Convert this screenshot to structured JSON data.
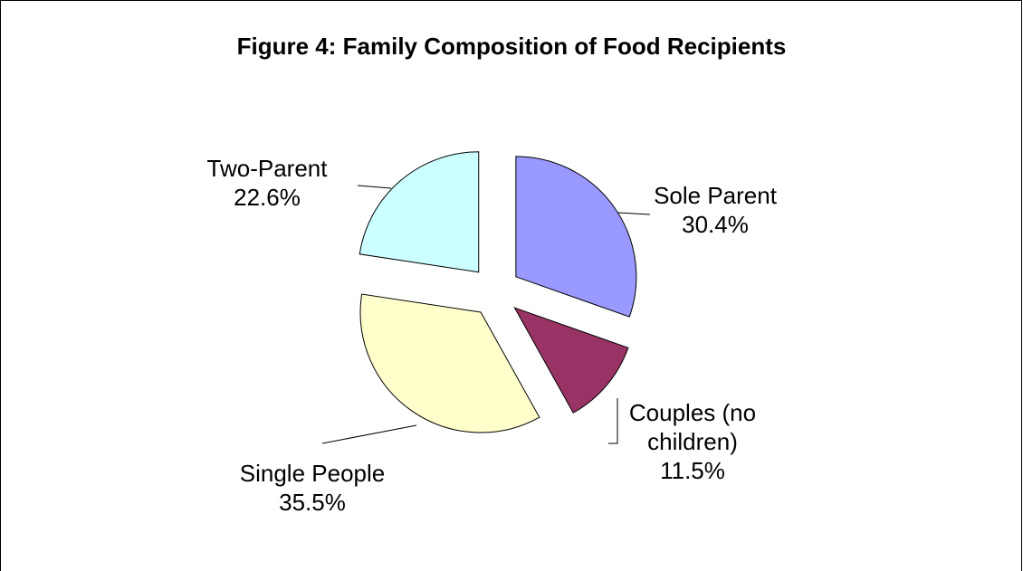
{
  "chart_data": {
    "type": "pie",
    "title": "Figure 4: Family Composition of Food Recipients",
    "categories": [
      "Sole Parent",
      "Couples (no children)",
      "Single People",
      "Two-Parent"
    ],
    "values": [
      30.4,
      11.5,
      35.5,
      22.6
    ],
    "value_labels": [
      "30.4%",
      "11.5%",
      "35.5%",
      "22.6%"
    ],
    "colors": [
      "#9999ff",
      "#993366",
      "#ffffcc",
      "#ccffff"
    ]
  }
}
